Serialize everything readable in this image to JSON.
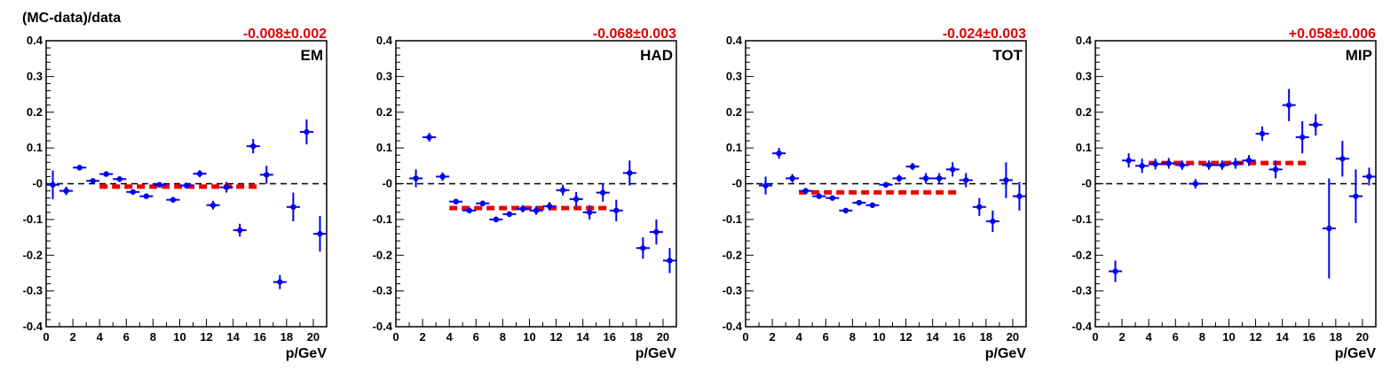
{
  "figure": {
    "ylabel": "(MC-data)/data",
    "xlabel": "p/GeV"
  },
  "colors": {
    "points": "#0000ee",
    "fit": "#ee0000",
    "fit_label": "#dd0000",
    "zero_line": "#000000",
    "frame": "#000000"
  },
  "chart_data": [
    {
      "type": "scatter",
      "panel_label": "EM",
      "fit_label": "-0.008±0.002",
      "fit": {
        "value": -0.008,
        "x_range": [
          4,
          16
        ]
      },
      "zero_line": 0,
      "xlim": [
        0,
        21
      ],
      "ylim": [
        -0.4,
        0.4
      ],
      "xticks": [
        0,
        2,
        4,
        6,
        8,
        10,
        12,
        14,
        16,
        18,
        20
      ],
      "yticks": [
        -0.4,
        -0.3,
        -0.2,
        -0.1,
        0,
        0.1,
        0.2,
        0.3,
        0.4
      ],
      "ytick_labels": [
        "-0.4",
        "-0.3",
        "-0.2",
        "-0.1",
        "-0",
        "0.1",
        "0.2",
        "0.3",
        "0.4"
      ],
      "points": [
        {
          "x": 0.5,
          "y": -0.003,
          "err": 0.04
        },
        {
          "x": 1.5,
          "y": -0.02,
          "err": 0.012
        },
        {
          "x": 2.5,
          "y": 0.045,
          "err": 0.008
        },
        {
          "x": 3.5,
          "y": 0.008,
          "err": 0.007
        },
        {
          "x": 4.5,
          "y": 0.027,
          "err": 0.007
        },
        {
          "x": 5.5,
          "y": 0.013,
          "err": 0.007
        },
        {
          "x": 6.5,
          "y": -0.023,
          "err": 0.007
        },
        {
          "x": 7.5,
          "y": -0.035,
          "err": 0.007
        },
        {
          "x": 8.5,
          "y": -0.003,
          "err": 0.007
        },
        {
          "x": 9.5,
          "y": -0.045,
          "err": 0.008
        },
        {
          "x": 10.5,
          "y": -0.005,
          "err": 0.008
        },
        {
          "x": 11.5,
          "y": 0.028,
          "err": 0.01
        },
        {
          "x": 12.5,
          "y": -0.06,
          "err": 0.012
        },
        {
          "x": 13.5,
          "y": -0.01,
          "err": 0.015
        },
        {
          "x": 14.5,
          "y": -0.13,
          "err": 0.018
        },
        {
          "x": 15.5,
          "y": 0.105,
          "err": 0.02
        },
        {
          "x": 16.5,
          "y": 0.025,
          "err": 0.025
        },
        {
          "x": 17.5,
          "y": -0.275,
          "err": 0.02
        },
        {
          "x": 18.5,
          "y": -0.065,
          "err": 0.04
        },
        {
          "x": 19.5,
          "y": 0.145,
          "err": 0.035
        },
        {
          "x": 20.5,
          "y": -0.14,
          "err": 0.05
        }
      ]
    },
    {
      "type": "scatter",
      "panel_label": "HAD",
      "fit_label": "-0.068±0.003",
      "fit": {
        "value": -0.068,
        "x_range": [
          4,
          16
        ]
      },
      "zero_line": 0,
      "xlim": [
        0,
        21
      ],
      "ylim": [
        -0.4,
        0.4
      ],
      "xticks": [
        0,
        2,
        4,
        6,
        8,
        10,
        12,
        14,
        16,
        18,
        20
      ],
      "yticks": [
        -0.4,
        -0.3,
        -0.2,
        -0.1,
        0,
        0.1,
        0.2,
        0.3,
        0.4
      ],
      "ytick_labels": [
        "-0.4",
        "-0.3",
        "-0.2",
        "-0.1",
        "-0",
        "0.1",
        "0.2",
        "0.3",
        "0.4"
      ],
      "points": [
        {
          "x": 1.5,
          "y": 0.015,
          "err": 0.025
        },
        {
          "x": 2.5,
          "y": 0.13,
          "err": 0.012
        },
        {
          "x": 3.5,
          "y": 0.02,
          "err": 0.012
        },
        {
          "x": 4.5,
          "y": -0.05,
          "err": 0.008
        },
        {
          "x": 5.5,
          "y": -0.075,
          "err": 0.008
        },
        {
          "x": 6.5,
          "y": -0.055,
          "err": 0.008
        },
        {
          "x": 7.5,
          "y": -0.1,
          "err": 0.008
        },
        {
          "x": 8.5,
          "y": -0.085,
          "err": 0.008
        },
        {
          "x": 9.5,
          "y": -0.07,
          "err": 0.01
        },
        {
          "x": 10.5,
          "y": -0.075,
          "err": 0.012
        },
        {
          "x": 11.5,
          "y": -0.063,
          "err": 0.012
        },
        {
          "x": 12.5,
          "y": -0.018,
          "err": 0.015
        },
        {
          "x": 13.5,
          "y": -0.043,
          "err": 0.02
        },
        {
          "x": 14.5,
          "y": -0.08,
          "err": 0.02
        },
        {
          "x": 15.5,
          "y": -0.025,
          "err": 0.025
        },
        {
          "x": 16.5,
          "y": -0.075,
          "err": 0.03
        },
        {
          "x": 17.5,
          "y": 0.03,
          "err": 0.035
        },
        {
          "x": 18.5,
          "y": -0.18,
          "err": 0.03
        },
        {
          "x": 19.5,
          "y": -0.135,
          "err": 0.035
        },
        {
          "x": 20.5,
          "y": -0.215,
          "err": 0.035
        }
      ]
    },
    {
      "type": "scatter",
      "panel_label": "TOT",
      "fit_label": "-0.024±0.003",
      "fit": {
        "value": -0.024,
        "x_range": [
          4,
          16
        ]
      },
      "zero_line": 0,
      "xlim": [
        0,
        21
      ],
      "ylim": [
        -0.4,
        0.4
      ],
      "xticks": [
        0,
        2,
        4,
        6,
        8,
        10,
        12,
        14,
        16,
        18,
        20
      ],
      "yticks": [
        -0.4,
        -0.3,
        -0.2,
        -0.1,
        0,
        0.1,
        0.2,
        0.3,
        0.4
      ],
      "ytick_labels": [
        "-0.4",
        "-0.3",
        "-0.2",
        "-0.1",
        "-0",
        "0.1",
        "0.2",
        "0.3",
        "0.4"
      ],
      "points": [
        {
          "x": 1.5,
          "y": -0.005,
          "err": 0.025
        },
        {
          "x": 2.5,
          "y": 0.085,
          "err": 0.015
        },
        {
          "x": 3.5,
          "y": 0.015,
          "err": 0.012
        },
        {
          "x": 4.5,
          "y": -0.02,
          "err": 0.008
        },
        {
          "x": 5.5,
          "y": -0.035,
          "err": 0.007
        },
        {
          "x": 6.5,
          "y": -0.04,
          "err": 0.007
        },
        {
          "x": 7.5,
          "y": -0.075,
          "err": 0.007
        },
        {
          "x": 8.5,
          "y": -0.053,
          "err": 0.007
        },
        {
          "x": 9.5,
          "y": -0.06,
          "err": 0.008
        },
        {
          "x": 10.5,
          "y": -0.003,
          "err": 0.008
        },
        {
          "x": 11.5,
          "y": 0.015,
          "err": 0.01
        },
        {
          "x": 12.5,
          "y": 0.048,
          "err": 0.01
        },
        {
          "x": 13.5,
          "y": 0.015,
          "err": 0.015
        },
        {
          "x": 14.5,
          "y": 0.015,
          "err": 0.015
        },
        {
          "x": 15.5,
          "y": 0.04,
          "err": 0.02
        },
        {
          "x": 16.5,
          "y": 0.01,
          "err": 0.02
        },
        {
          "x": 17.5,
          "y": -0.065,
          "err": 0.025
        },
        {
          "x": 18.5,
          "y": -0.105,
          "err": 0.03
        },
        {
          "x": 19.5,
          "y": 0.01,
          "err": 0.05
        },
        {
          "x": 20.5,
          "y": -0.035,
          "err": 0.04
        }
      ]
    },
    {
      "type": "scatter",
      "panel_label": "MIP",
      "fit_label": "+0.058±0.006",
      "fit": {
        "value": 0.058,
        "x_range": [
          4,
          16
        ]
      },
      "zero_line": 0,
      "xlim": [
        0,
        21
      ],
      "ylim": [
        -0.4,
        0.4
      ],
      "xticks": [
        0,
        2,
        4,
        6,
        8,
        10,
        12,
        14,
        16,
        18,
        20
      ],
      "yticks": [
        -0.4,
        -0.3,
        -0.2,
        -0.1,
        0,
        0.1,
        0.2,
        0.3,
        0.4
      ],
      "ytick_labels": [
        "-0.4",
        "-0.3",
        "-0.2",
        "-0.1",
        "-0",
        "0.1",
        "0.2",
        "0.3",
        "0.4"
      ],
      "points": [
        {
          "x": 1.5,
          "y": -0.245,
          "err": 0.03
        },
        {
          "x": 2.5,
          "y": 0.065,
          "err": 0.02
        },
        {
          "x": 3.5,
          "y": 0.05,
          "err": 0.02
        },
        {
          "x": 4.5,
          "y": 0.055,
          "err": 0.015
        },
        {
          "x": 5.5,
          "y": 0.057,
          "err": 0.015
        },
        {
          "x": 6.5,
          "y": 0.052,
          "err": 0.013
        },
        {
          "x": 7.5,
          "y": 0.0,
          "err": 0.013
        },
        {
          "x": 8.5,
          "y": 0.052,
          "err": 0.013
        },
        {
          "x": 9.5,
          "y": 0.052,
          "err": 0.013
        },
        {
          "x": 10.5,
          "y": 0.057,
          "err": 0.015
        },
        {
          "x": 11.5,
          "y": 0.065,
          "err": 0.015
        },
        {
          "x": 12.5,
          "y": 0.14,
          "err": 0.02
        },
        {
          "x": 13.5,
          "y": 0.04,
          "err": 0.025
        },
        {
          "x": 14.5,
          "y": 0.22,
          "err": 0.045
        },
        {
          "x": 15.5,
          "y": 0.13,
          "err": 0.045
        },
        {
          "x": 16.5,
          "y": 0.165,
          "err": 0.03
        },
        {
          "x": 17.5,
          "y": -0.125,
          "err": 0.14
        },
        {
          "x": 18.5,
          "y": 0.07,
          "err": 0.05
        },
        {
          "x": 19.5,
          "y": -0.035,
          "err": 0.075
        },
        {
          "x": 20.5,
          "y": 0.02,
          "err": 0.025
        }
      ]
    }
  ]
}
